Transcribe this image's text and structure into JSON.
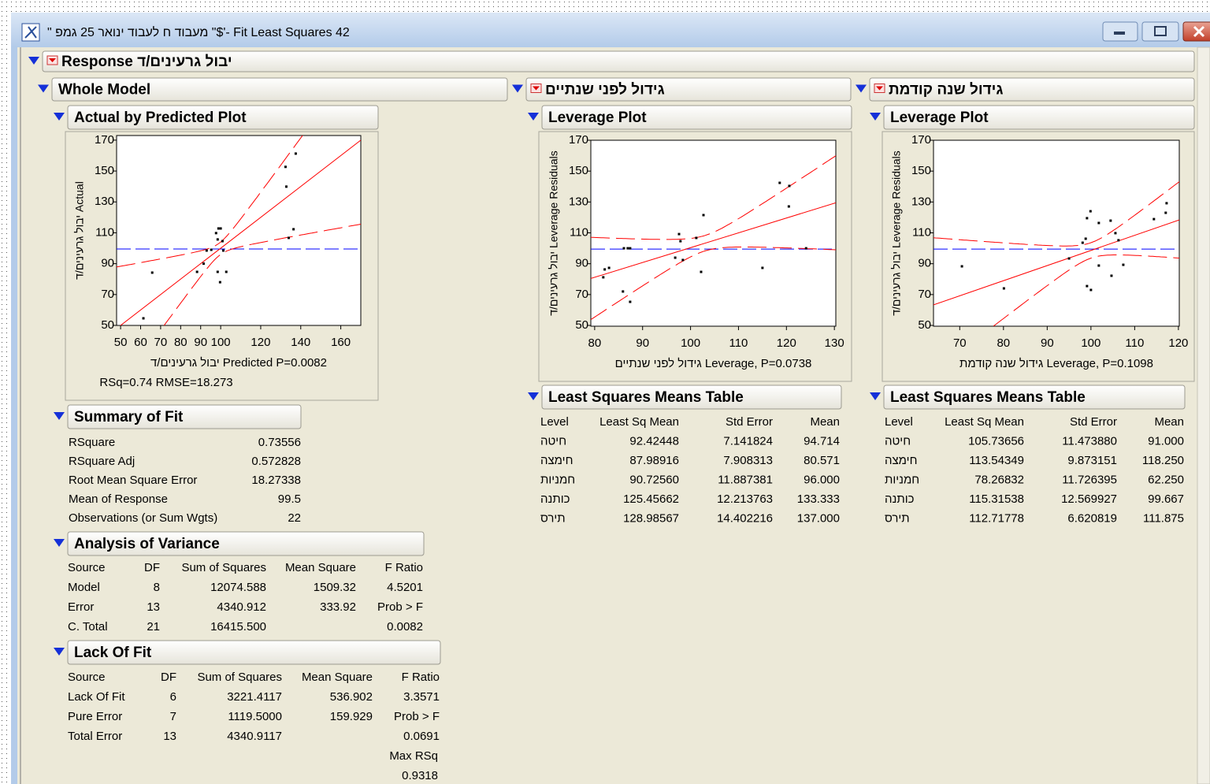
{
  "window": {
    "title": "\" מעבוד ח לעבוד  ינואר 25 גמפ \"$'- Fit Least Squares 42"
  },
  "response": {
    "title": "Response יבול גרעינים/ד"
  },
  "whole_model": {
    "title": "Whole Model",
    "actual_by_predicted": {
      "title": "Actual by Predicted Plot",
      "chart": {
        "type": "scatter",
        "x_label": "יבול גרעינים/ד Predicted P=0.0082",
        "y_label": "יבול גרעינים/ד Actual",
        "xlim": [
          48,
          170
        ],
        "ylim": [
          50,
          173
        ],
        "xticks": [
          50,
          60,
          70,
          80,
          90,
          100,
          120,
          140,
          160
        ],
        "yticks": [
          50,
          70,
          90,
          110,
          130,
          150,
          170
        ],
        "x": [
          61.4,
          65.8,
          88.2,
          93,
          95.3,
          97.7,
          98.9,
          100,
          98.5,
          100.9,
          98.5,
          99.7,
          102.8,
          101.3,
          132.4,
          132.8,
          134,
          136.4,
          137.5,
          91.5
        ],
        "y": [
          54.6,
          84.2,
          84.7,
          98.5,
          99,
          109.8,
          112.8,
          112.8,
          105.7,
          104.6,
          84.7,
          78,
          84.7,
          98.5,
          152.7,
          139.9,
          106.7,
          112.3,
          161.3,
          90
        ],
        "mean_line": 99.5,
        "fit": {
          "slope": 1,
          "intercept": 0
        },
        "confidence": {
          "center": 99.5,
          "halfwidth": 4,
          "growth": 0.77
        }
      },
      "stats": "RSq=0.74 RMSE=18.273"
    },
    "summary_of_fit": {
      "title": "Summary of Fit",
      "rows": [
        [
          "RSquare",
          "0.73556"
        ],
        [
          "RSquare Adj",
          "0.572828"
        ],
        [
          "Root Mean Square Error",
          "18.27338"
        ],
        [
          "Mean of Response",
          "99.5"
        ],
        [
          "Observations (or Sum Wgts)",
          "22"
        ]
      ]
    },
    "anova": {
      "title": "Analysis of Variance",
      "header": [
        "Source",
        "DF",
        "Sum of Squares",
        "Mean Square",
        "F Ratio"
      ],
      "rows": [
        [
          "Model",
          "8",
          "12074.588",
          "1509.32",
          "4.5201"
        ],
        [
          "Error",
          "13",
          "4340.912",
          "333.92",
          "Prob > F"
        ],
        [
          "C. Total",
          "21",
          "16415.500",
          null,
          "0.0082"
        ]
      ]
    },
    "lack_of_fit": {
      "title": "Lack Of Fit",
      "header": [
        "Source",
        "DF",
        "Sum of Squares",
        "Mean Square",
        "F Ratio"
      ],
      "rows": [
        [
          "Lack Of Fit",
          "6",
          "3221.4117",
          "536.902",
          "3.3571"
        ],
        [
          "Pure Error",
          "7",
          "1119.5000",
          "159.929",
          "Prob > F"
        ],
        [
          "Total Error",
          "13",
          "4340.9117",
          null,
          "0.0691"
        ]
      ],
      "extra": [
        "Max RSq",
        "0.9318"
      ]
    }
  },
  "effects": [
    {
      "title": "גידול לפני שנתיים",
      "leverage_plot": {
        "title": "Leverage Plot",
        "chart": {
          "type": "scatter",
          "x_label": "גידול לפני שנתיים Leverage, P=0.0738",
          "y_label": "יבול גרעינים/ד Leverage Residuals",
          "xlim": [
            79.2,
            130.3
          ],
          "ylim": [
            49.5,
            170
          ],
          "xticks": [
            80,
            90,
            100,
            110,
            120,
            130
          ],
          "yticks": [
            50,
            70,
            90,
            110,
            130,
            150,
            170
          ],
          "x": [
            81.8,
            82.1,
            83,
            86.1,
            86.9,
            87.4,
            85.9,
            87.4,
            97.6,
            97.9,
            96.8,
            98.4,
            101.2,
            102.7,
            102.2,
            115,
            118.6,
            120.6,
            120.5,
            124.1
          ],
          "y": [
            81.2,
            86.3,
            87.3,
            100,
            100,
            100,
            72,
            65.3,
            109.2,
            104.6,
            93.9,
            92.4,
            106.7,
            121.5,
            84.7,
            87.3,
            142.4,
            140.4,
            127.1,
            100
          ],
          "mean_line": 99.5,
          "fit": {
            "slope": 0.96,
            "intercept": 4.4
          },
          "confidence": {
            "center": 103,
            "halfwidth": 5,
            "growth": 1.1
          }
        }
      },
      "lsm_table": {
        "title": "Least Squares Means Table",
        "header": [
          "Level",
          "Least Sq Mean",
          "Std Error",
          "Mean"
        ],
        "rows": [
          [
            "חיטה",
            "92.42448",
            "7.141824",
            "94.714"
          ],
          [
            "חימצה",
            "87.98916",
            "7.908313",
            "80.571"
          ],
          [
            "חמניות",
            "90.72560",
            "11.887381",
            "96.000"
          ],
          [
            "כותנה",
            "125.45662",
            "12.213763",
            "133.333"
          ],
          [
            "תירס",
            "128.98567",
            "14.402216",
            "137.000"
          ]
        ]
      }
    },
    {
      "title": "גידול שנה קודמת",
      "leverage_plot": {
        "title": "Leverage Plot",
        "chart": {
          "type": "scatter",
          "x_label": "גידול שנה קודמת Leverage, P=0.1098",
          "y_label": "יבול גרעינים/ד Leverage Residuals",
          "xlim": [
            64,
            120.2
          ],
          "ylim": [
            49.5,
            170
          ],
          "xticks": [
            70,
            80,
            90,
            100,
            110,
            120
          ],
          "yticks": [
            50,
            70,
            90,
            110,
            130,
            150,
            170
          ],
          "x": [
            70.5,
            80.1,
            95,
            98.1,
            98.8,
            99.1,
            99.9,
            101.8,
            99.1,
            100,
            101.8,
            104.5,
            104.7,
            105.6,
            106.3,
            107.4,
            114.4,
            117.3,
            117.1
          ],
          "y": [
            88.3,
            74,
            93.4,
            103.6,
            106.2,
            119.5,
            124,
            116.4,
            75.5,
            73,
            88.8,
            117.9,
            82.2,
            109.8,
            105.2,
            89.3,
            118.9,
            129.2,
            123
          ],
          "mean_line": 99.5,
          "fit": {
            "slope": 0.98,
            "intercept": 0.6
          },
          "confidence": {
            "center": 100,
            "halfwidth": 5,
            "growth": 1.2
          }
        }
      },
      "lsm_table": {
        "title": "Least Squares Means Table",
        "header": [
          "Level",
          "Least Sq Mean",
          "Std Error",
          "Mean"
        ],
        "rows": [
          [
            "חיטה",
            "105.73656",
            "11.473880",
            "91.000"
          ],
          [
            "חימצה",
            "113.54349",
            "9.873151",
            "118.250"
          ],
          [
            "חמניות",
            "78.26832",
            "11.726395",
            "62.250"
          ],
          [
            "כותנה",
            "115.31538",
            "12.569927",
            "99.667"
          ],
          [
            "תירס",
            "112.71778",
            "6.620819",
            "111.875"
          ]
        ]
      }
    }
  ]
}
